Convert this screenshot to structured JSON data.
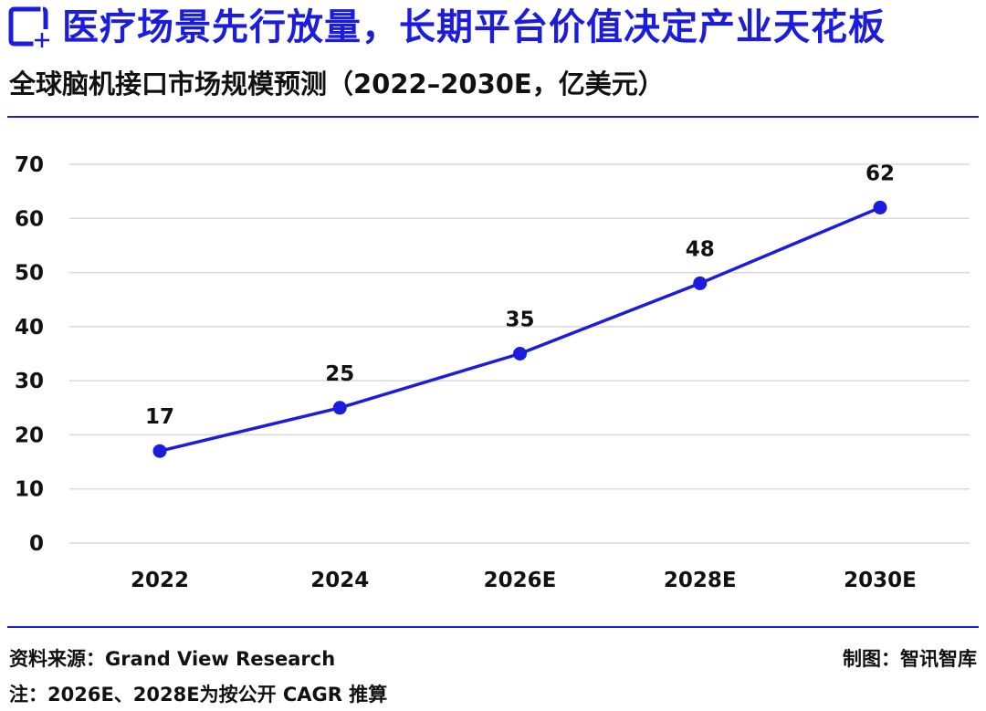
{
  "header": {
    "icon": "plus-box-icon",
    "title": "医疗场景先行放量，长期平台价值决定产业天花板",
    "subtitle": "全球脑机接口市场规模预测（2022–2030E，亿美元）"
  },
  "colors": {
    "accent": "#1c1cdc",
    "grid": "#d9d9d9",
    "text": "#111111"
  },
  "chart_data": {
    "type": "line",
    "categories": [
      "2022",
      "2024",
      "2026E",
      "2028E",
      "2030E"
    ],
    "series": [
      {
        "values": [
          17,
          25,
          35,
          48,
          62
        ]
      }
    ],
    "data_labels": [
      "17",
      "25",
      "35",
      "48",
      "62"
    ],
    "y_ticks": [
      "0",
      "10",
      "20",
      "30",
      "40",
      "50",
      "60",
      "70"
    ],
    "ylim": [
      0,
      70
    ],
    "grid": true,
    "legend": "none",
    "title": "",
    "xlabel": "",
    "ylabel": ""
  },
  "footer": {
    "source": "资料来源：Grand View Research",
    "credit": "制图：智讯智库",
    "note": "注：2026E、2028E为按公开 CAGR 推算"
  }
}
